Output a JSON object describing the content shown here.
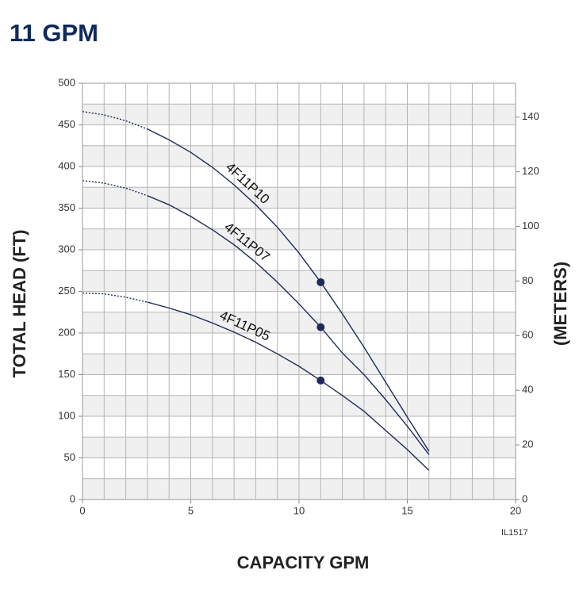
{
  "chart_data": {
    "type": "line",
    "title": "11 GPM",
    "xlabel": "CAPACITY GPM",
    "ylabel": "TOTAL HEAD (FT)",
    "y2label": "(METERS)",
    "code": "IL1517",
    "x": [
      0,
      1,
      2,
      3,
      4,
      5,
      6,
      7,
      8,
      9,
      10,
      11,
      12,
      13,
      14,
      15,
      16
    ],
    "series": [
      {
        "name": "4F11P10",
        "color": "#1c2b5a",
        "values": [
          466,
          462,
          455,
          445,
          432,
          417,
          399,
          378,
          354,
          327,
          296,
          261,
          223,
          183,
          141,
          99,
          58
        ],
        "dashed_until": 3,
        "marker_x": 11
      },
      {
        "name": "4F11P07",
        "color": "#1c2b5a",
        "values": [
          383,
          380,
          374,
          365,
          354,
          340,
          324,
          306,
          285,
          261,
          235,
          207,
          176,
          150,
          120,
          88,
          54
        ],
        "dashed_until": 3,
        "marker_x": 11
      },
      {
        "name": "4F11P05",
        "color": "#1c2b5a",
        "values": [
          248,
          247,
          243,
          237,
          230,
          222,
          212,
          201,
          189,
          175,
          160,
          143,
          125,
          106,
          83,
          60,
          35
        ],
        "dashed_until": 3,
        "marker_x": 11
      }
    ],
    "xlim": [
      0,
      20
    ],
    "xticks": [
      0,
      5,
      10,
      15,
      20
    ],
    "ylim": [
      0,
      500
    ],
    "yticks": [
      0,
      50,
      100,
      150,
      200,
      250,
      300,
      350,
      400,
      450,
      500
    ],
    "y2lim": [
      0,
      152.4
    ],
    "y2ticks": [
      0,
      20,
      40,
      60,
      80,
      100,
      120,
      140
    ],
    "xgrid": [
      0,
      1,
      2,
      3,
      4,
      5,
      6,
      7,
      8,
      9,
      10,
      11,
      12,
      13,
      14,
      15,
      16,
      17,
      18,
      19,
      20
    ],
    "ygrid": [
      0,
      25,
      50,
      75,
      100,
      125,
      150,
      175,
      200,
      225,
      250,
      275,
      300,
      325,
      350,
      375,
      400,
      425,
      450,
      475,
      500
    ],
    "band_color": "#f0f0f0",
    "grid_color": "#b5b5b5"
  }
}
